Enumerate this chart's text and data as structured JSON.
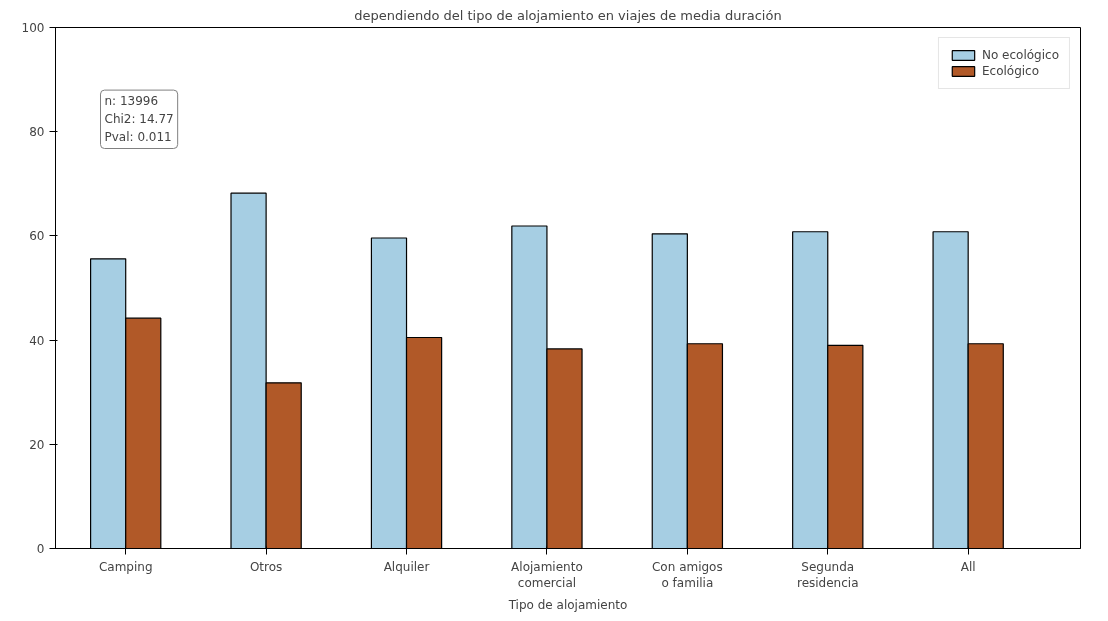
{
  "chart_data": {
    "type": "bar",
    "title": "dependiendo del tipo de alojamiento en viajes de media duración",
    "xlabel": "Tipo de alojamiento",
    "categories": [
      "Camping",
      "Otros",
      "Alquiler",
      "Alojamiento\ncomercial",
      "Con amigos\no familia",
      "Segunda\nresidencia",
      "All"
    ],
    "series": [
      {
        "name": "No ecológico",
        "color": "#a6cee3",
        "values": [
          55.6,
          68.2,
          59.6,
          61.9,
          60.4,
          60.8,
          60.8
        ]
      },
      {
        "name": "Ecológico",
        "color": "#b15928",
        "values": [
          44.2,
          31.8,
          40.5,
          38.3,
          39.3,
          39.0,
          39.3
        ]
      }
    ],
    "ylim": [
      0,
      100
    ],
    "yticks": [
      0,
      20,
      40,
      60,
      80,
      100
    ],
    "grid": false,
    "legend": "top right",
    "annotations": [
      "n: 13996\nChi2: 14.77\nPval: 0.011"
    ]
  }
}
